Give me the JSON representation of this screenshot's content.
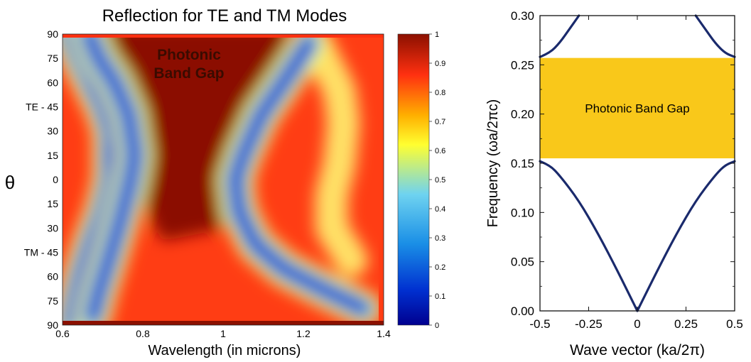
{
  "chart_data": [
    {
      "type": "heatmap",
      "title": "Reflection for TE and TM Modes",
      "xlabel": "Wavelength (in microns)",
      "ylabel": "θ",
      "xlim": [
        0.6,
        1.4
      ],
      "x_ticks": [
        "0.6",
        "0.8",
        "1",
        "1.2",
        "1.4"
      ],
      "x_tick_values": [
        0.6,
        0.8,
        1.0,
        1.2,
        1.4
      ],
      "y_ticks": [
        "90",
        "75",
        "60",
        "TE - 45",
        "30",
        "15",
        "0",
        "15",
        "30",
        "TM - 45",
        "60",
        "75",
        "90"
      ],
      "annotation": [
        "Photonic",
        "Band Gap"
      ],
      "colorbar": {
        "min": 0,
        "max": 1,
        "ticks": [
          "1",
          "0.9",
          "0.8",
          "0.7",
          "0.6",
          "0.5",
          "0.4",
          "0.3",
          "0.2",
          "0.1",
          "0"
        ],
        "colormap": [
          "#00008f",
          "#0030d0",
          "#1a8fe6",
          "#6fd3f0",
          "#ffff30",
          "#ffb000",
          "#ff3010",
          "#8b1000"
        ]
      },
      "ridges_low_reflectance": [
        {
          "x": [
            0.615,
            0.64,
            0.67,
            0.7,
            0.72,
            0.72,
            0.7,
            0.67,
            0.645,
            0.63,
            0.62
          ],
          "y": [
            90,
            75,
            60,
            45,
            30,
            0,
            -20,
            -40,
            -60,
            -75,
            -88
          ]
        },
        {
          "x": [
            0.665,
            0.69,
            0.73,
            0.765,
            0.78,
            0.77,
            0.745,
            0.715,
            0.69,
            0.675
          ],
          "y": [
            90,
            75,
            60,
            40,
            15,
            0,
            -25,
            -50,
            -70,
            -85
          ]
        },
        {
          "x": [
            1.215,
            1.19,
            1.15,
            1.095,
            1.05,
            1.03,
            1.04,
            1.08,
            1.15,
            1.25,
            1.35
          ],
          "y": [
            85,
            75,
            60,
            40,
            15,
            0,
            -20,
            -40,
            -55,
            -68,
            -80
          ]
        }
      ],
      "outer_band_center": {
        "x": [
          1.23,
          1.26,
          1.29,
          1.3,
          1.29,
          1.27,
          1.27,
          1.32
        ],
        "y": [
          85,
          70,
          55,
          35,
          10,
          -10,
          -30,
          -50
        ]
      },
      "background_value": 0.92
    },
    {
      "type": "line",
      "xlabel": "Wave vector (ka/2π)",
      "ylabel": "Frequency (ωa/2πc)",
      "xlim": [
        -0.5,
        0.5
      ],
      "ylim": [
        0,
        0.3
      ],
      "x_ticks": [
        "-0.5",
        "-0.25",
        "0",
        "0.25",
        "0.5"
      ],
      "x_tick_values": [
        -0.5,
        -0.25,
        0,
        0.25,
        0.5
      ],
      "y_ticks": [
        "0.00",
        "0.05",
        "0.10",
        "0.15",
        "0.20",
        "0.25",
        "0.30"
      ],
      "y_tick_values": [
        0,
        0.05,
        0.1,
        0.15,
        0.2,
        0.25,
        0.3
      ],
      "series": [
        {
          "x": [
            -0.5,
            -0.45,
            -0.4,
            -0.3,
            -0.2,
            -0.1,
            0
          ],
          "y": [
            0.152,
            0.148,
            0.138,
            0.112,
            0.078,
            0.04,
            0.0
          ]
        },
        {
          "x": [
            0,
            0.1,
            0.2,
            0.3,
            0.4,
            0.45,
            0.5
          ],
          "y": [
            0.0,
            0.04,
            0.078,
            0.112,
            0.138,
            0.148,
            0.152
          ]
        },
        {
          "x": [
            -0.5,
            -0.45,
            -0.4,
            -0.35,
            -0.3
          ],
          "y": [
            0.258,
            0.262,
            0.272,
            0.286,
            0.3
          ]
        },
        {
          "x": [
            0.3,
            0.35,
            0.4,
            0.45,
            0.5
          ],
          "y": [
            0.3,
            0.286,
            0.272,
            0.262,
            0.258
          ]
        }
      ],
      "band_gap": {
        "label": "Photonic Band Gap",
        "ymin": 0.155,
        "ymax": 0.257,
        "color": "#f9c81a"
      },
      "line_color": "#1a2a6c"
    }
  ]
}
